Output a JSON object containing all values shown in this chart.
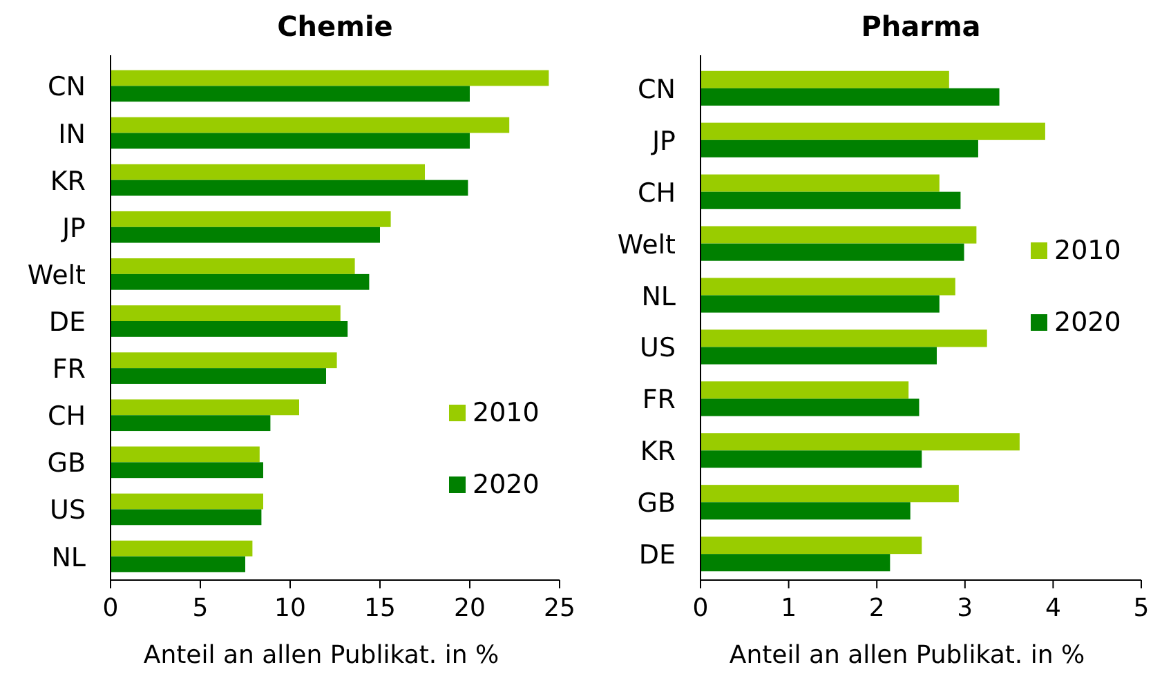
{
  "chart_data": [
    {
      "type": "bar",
      "orientation": "horizontal",
      "title": "Chemie",
      "xlabel": "Anteil an allen Publikat. in %",
      "categories": [
        "CN",
        "IN",
        "KR",
        "JP",
        "Welt",
        "DE",
        "FR",
        "CH",
        "GB",
        "US",
        "NL"
      ],
      "xlim": [
        0,
        25
      ],
      "xticks": [
        0,
        5,
        10,
        15,
        20,
        25
      ],
      "legend": "bottom right",
      "series": [
        {
          "name": "2010",
          "color": "#99cc00",
          "values": [
            24.4,
            22.2,
            17.5,
            15.6,
            13.6,
            12.8,
            12.6,
            10.5,
            8.3,
            8.5,
            7.9
          ]
        },
        {
          "name": "2020",
          "color": "#008000",
          "values": [
            20.0,
            20.0,
            19.9,
            15.0,
            14.4,
            13.2,
            12.0,
            8.9,
            8.5,
            8.4,
            7.5
          ]
        }
      ]
    },
    {
      "type": "bar",
      "orientation": "horizontal",
      "title": "Pharma",
      "xlabel": "Anteil an allen Publikat. in %",
      "categories": [
        "CN",
        "JP",
        "CH",
        "Welt",
        "NL",
        "US",
        "FR",
        "KR",
        "GB",
        "DE"
      ],
      "xlim": [
        0,
        5
      ],
      "xticks": [
        0,
        1,
        2,
        3,
        4,
        5
      ],
      "legend": "right",
      "series": [
        {
          "name": "2010",
          "color": "#99cc00",
          "values": [
            2.82,
            3.91,
            2.71,
            3.13,
            2.89,
            3.25,
            2.36,
            3.62,
            2.93,
            2.51
          ]
        },
        {
          "name": "2020",
          "color": "#008000",
          "values": [
            3.39,
            3.15,
            2.95,
            2.99,
            2.71,
            2.68,
            2.48,
            2.51,
            2.38,
            2.15
          ]
        }
      ]
    }
  ]
}
